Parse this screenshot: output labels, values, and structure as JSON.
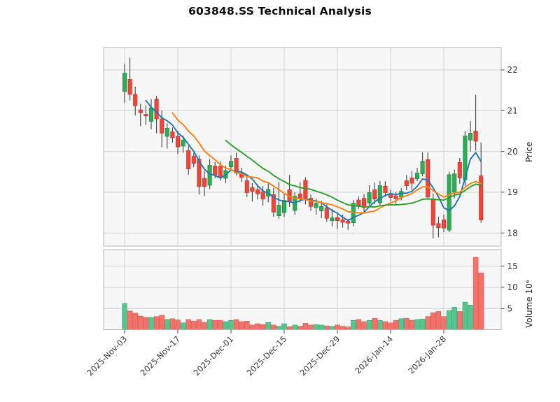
{
  "chart_data": {
    "type": "candlestick",
    "title": "603848.SS Technical Analysis",
    "ylabel": "Price",
    "ylabel2": "Volume 10⁶",
    "grid": true,
    "yticks": [
      18,
      19,
      20,
      21,
      22
    ],
    "ylim": [
      17.73,
      22.55
    ],
    "y2ticks": [
      5,
      10,
      15
    ],
    "y2lim": [
      0,
      18.9
    ],
    "xtick_indices": [
      0,
      10,
      20,
      30,
      40,
      50,
      60
    ],
    "xtick_labels": [
      "2025-Nov-03",
      "2025-Nov-17",
      "2025-Dec-01",
      "2025-Dec-15",
      "2025-Dec-29",
      "2026-Jan-14",
      "2026-Jan-28"
    ],
    "moving_averages": [
      {
        "name": "MA5",
        "window": 5,
        "color": "#1f77b4"
      },
      {
        "name": "MA10",
        "window": 10,
        "color": "#ff7f0e"
      },
      {
        "name": "MA20",
        "window": 20,
        "color": "#2ca02c"
      }
    ],
    "colors": {
      "up_candle": "#2eab55",
      "up_edge": "#1e8c42",
      "down_candle": "#ef4438",
      "down_edge": "#c8342a",
      "up_volume": "#56c690",
      "up_volume_edge": "#3aa871",
      "down_volume": "#f4726a",
      "down_volume_edge": "#d95750",
      "wick": "#3f3f3f",
      "panel_bg": "#f7f7f7",
      "grid": "#d0d0d0",
      "spine": "#b5b5b5",
      "tick_text": "#3a3a3a"
    },
    "dates": [
      "2025-11-03",
      "2025-11-04",
      "2025-11-05",
      "2025-11-06",
      "2025-11-07",
      "2025-11-10",
      "2025-11-11",
      "2025-11-12",
      "2025-11-13",
      "2025-11-14",
      "2025-11-17",
      "2025-11-18",
      "2025-11-19",
      "2025-11-20",
      "2025-11-21",
      "2025-11-24",
      "2025-11-25",
      "2025-11-26",
      "2025-11-27",
      "2025-11-28",
      "2025-12-01",
      "2025-12-02",
      "2025-12-03",
      "2025-12-04",
      "2025-12-05",
      "2025-12-08",
      "2025-12-09",
      "2025-12-10",
      "2025-12-11",
      "2025-12-12",
      "2025-12-15",
      "2025-12-16",
      "2025-12-17",
      "2025-12-18",
      "2025-12-19",
      "2025-12-22",
      "2025-12-23",
      "2025-12-24",
      "2025-12-25",
      "2025-12-26",
      "2025-12-29",
      "2025-12-30",
      "2025-12-31",
      "2026-01-05",
      "2026-01-06",
      "2026-01-07",
      "2026-01-08",
      "2026-01-09",
      "2026-01-12",
      "2026-01-13",
      "2026-01-14",
      "2026-01-15",
      "2026-01-16",
      "2026-01-19",
      "2026-01-20",
      "2026-01-21",
      "2026-01-22",
      "2026-01-23",
      "2026-01-26",
      "2026-01-27",
      "2026-01-28",
      "2026-01-29",
      "2026-01-30",
      "2026-02-02",
      "2026-02-03",
      "2026-02-04",
      "2026-02-05",
      "2026-02-06"
    ],
    "open": [
      21.47,
      21.77,
      21.4,
      21.02,
      20.91,
      20.74,
      21.28,
      20.8,
      20.37,
      20.48,
      20.37,
      20.13,
      20.02,
      19.88,
      19.81,
      19.34,
      19.17,
      19.64,
      19.64,
      19.34,
      19.62,
      19.83,
      19.47,
      19.28,
      19.11,
      19.06,
      19.01,
      18.9,
      18.94,
      18.42,
      18.5,
      19.06,
      18.55,
      18.96,
      19.29,
      18.85,
      18.62,
      18.54,
      18.62,
      18.3,
      18.38,
      18.32,
      18.29,
      18.25,
      18.81,
      18.85,
      18.73,
      19.06,
      18.74,
      19.15,
      18.95,
      18.91,
      18.88,
      19.28,
      19.35,
      19.33,
      19.45,
      19.8,
      18.82,
      18.23,
      18.32,
      18.07,
      19.0,
      19.73,
      19.3,
      20.28,
      20.5,
      19.4
    ],
    "high": [
      22.15,
      22.3,
      21.59,
      21.17,
      21.12,
      21.28,
      21.36,
      21.0,
      20.69,
      20.59,
      20.51,
      20.39,
      20.14,
      19.97,
      19.9,
      19.53,
      19.81,
      19.74,
      19.76,
      19.65,
      19.9,
      19.97,
      19.6,
      19.41,
      19.22,
      19.19,
      19.15,
      19.24,
      19.1,
      19.25,
      18.98,
      19.42,
      19.0,
      19.24,
      19.37,
      18.94,
      18.84,
      18.79,
      18.7,
      18.59,
      18.51,
      18.45,
      18.35,
      18.81,
      18.89,
      18.95,
      19.17,
      19.24,
      19.28,
      19.27,
      19.06,
      19.0,
      19.1,
      19.42,
      19.52,
      19.6,
      19.98,
      19.98,
      18.97,
      18.4,
      18.45,
      19.5,
      19.55,
      19.84,
      20.5,
      20.75,
      21.39,
      20.22
    ],
    "low": [
      21.19,
      21.25,
      20.88,
      20.62,
      20.65,
      20.54,
      20.45,
      20.1,
      20.07,
      20.22,
      19.94,
      19.97,
      19.43,
      19.61,
      18.94,
      18.91,
      19.07,
      19.34,
      19.28,
      19.22,
      19.53,
      19.41,
      19.25,
      18.88,
      18.77,
      18.82,
      18.67,
      18.75,
      18.4,
      18.35,
      18.4,
      18.64,
      18.45,
      18.75,
      18.7,
      18.54,
      18.45,
      18.36,
      18.28,
      18.16,
      18.1,
      18.13,
      18.08,
      18.16,
      18.59,
      18.51,
      18.68,
      18.71,
      18.66,
      18.89,
      18.77,
      18.72,
      18.8,
      19.05,
      19.06,
      19.27,
      19.39,
      18.82,
      17.87,
      17.89,
      18.02,
      18.02,
      18.85,
      19.21,
      19.15,
      20.0,
      20.02,
      18.25
    ],
    "close": [
      21.92,
      21.4,
      21.12,
      20.95,
      20.87,
      21.07,
      20.8,
      20.45,
      20.57,
      20.34,
      20.11,
      20.28,
      19.57,
      19.71,
      19.14,
      19.14,
      19.66,
      19.42,
      19.36,
      19.53,
      19.76,
      19.47,
      19.36,
      18.99,
      19.02,
      18.96,
      18.83,
      19.07,
      18.51,
      18.68,
      18.8,
      18.77,
      18.9,
      18.85,
      18.82,
      18.65,
      18.73,
      18.65,
      18.36,
      18.37,
      18.3,
      18.26,
      18.24,
      18.73,
      18.65,
      18.62,
      18.99,
      18.83,
      19.16,
      18.99,
      18.87,
      18.84,
      19.02,
      19.16,
      19.22,
      19.47,
      19.76,
      18.88,
      18.19,
      18.13,
      18.12,
      19.43,
      19.45,
      19.35,
      20.38,
      20.45,
      20.25,
      18.32
    ],
    "volume_millions": [
      6.2,
      4.4,
      3.9,
      3.2,
      2.9,
      2.9,
      3.1,
      3.4,
      2.4,
      2.6,
      2.3,
      1.6,
      2.4,
      2.0,
      2.4,
      1.7,
      2.4,
      2.2,
      2.2,
      1.9,
      2.2,
      2.4,
      1.9,
      2.0,
      1.1,
      1.4,
      1.2,
      1.7,
      1.1,
      0.8,
      1.4,
      0.7,
      1.1,
      0.8,
      1.5,
      1.1,
      1.2,
      1.1,
      0.9,
      0.8,
      1.1,
      0.8,
      0.65,
      2.2,
      2.4,
      1.9,
      2.2,
      2.7,
      2.2,
      1.9,
      1.6,
      2.2,
      2.6,
      2.7,
      2.2,
      2.4,
      2.5,
      3.1,
      4.0,
      4.3,
      3.1,
      4.5,
      5.3,
      4.3,
      6.5,
      5.8,
      17.1,
      13.4
    ]
  }
}
